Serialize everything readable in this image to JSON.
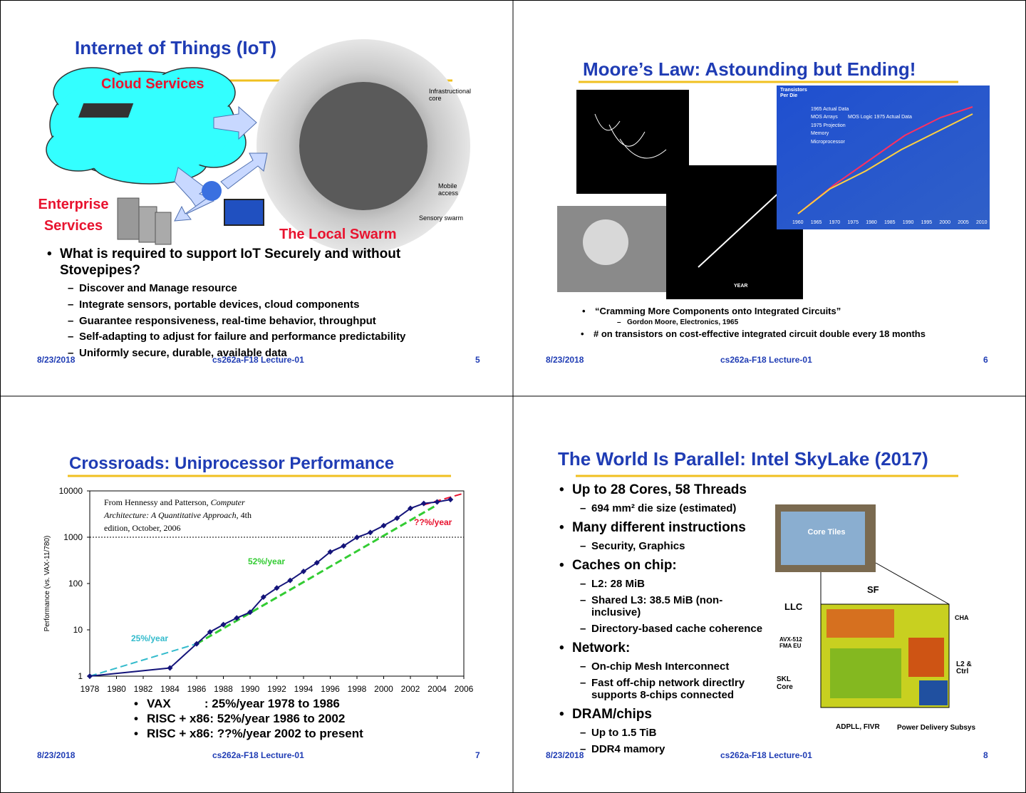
{
  "slides": [
    {
      "title": "Internet of Things (IoT)",
      "labels": {
        "cloud": "Cloud Services",
        "enterprise": "Enterprise Services",
        "swarm": "The Local Swarm",
        "core": "Infrastructional core",
        "mobile": "Mobile access",
        "sensory": "Sensory swarm"
      },
      "bullets": [
        {
          "text": "What is required to support IoT Securely and without Stovepipes?",
          "sub": [
            "Discover and Manage resource",
            "Integrate sensors, portable devices, cloud components",
            "Guarantee responsiveness, real-time behavior, throughput",
            "Self-adapting to adjust for failure and performance predictability",
            "Uniformly secure, durable, available data"
          ]
        }
      ],
      "footer": {
        "date": "8/23/2018",
        "course": "cs262a-F18 Lecture-01",
        "page": 5
      }
    },
    {
      "title": "Moore’s Law: Astounding but Ending!",
      "labels": {
        "transistors": "Transistors Per Die",
        "legend": [
          "1965 Actual Data",
          "MOS Arrays",
          "MOS Logic 1975 Actual Data",
          "1975 Projection",
          "Memory",
          "Microprocessor"
        ],
        "years": [
          "1960",
          "1965",
          "1970",
          "1975",
          "1980",
          "1985",
          "1990",
          "1995",
          "2000",
          "2005",
          "2010"
        ],
        "year_axis": "YEAR"
      },
      "bullets": [
        {
          "text": "“Cramming More Components onto Integrated Circuits”",
          "sub": [
            "Gordon Moore, Electronics, 1965"
          ]
        },
        {
          "text": "# on transistors on cost-effective integrated circuit double every 18 months"
        }
      ],
      "footer": {
        "date": "8/23/2018",
        "course": "cs262a-F18 Lecture-01",
        "page": 6
      }
    },
    {
      "title": "Crossroads: Uniprocessor Performance",
      "chart": {
        "type": "line",
        "ylabel": "Performance (vs. VAX-11/780)",
        "log_scale": true,
        "xlim": [
          1978,
          2006
        ],
        "xticks": [
          1978,
          1980,
          1982,
          1984,
          1986,
          1988,
          1990,
          1992,
          1994,
          1996,
          1998,
          2000,
          2002,
          2004,
          2006
        ],
        "ylim": [
          1,
          10000
        ],
        "yticks": [
          1,
          10,
          100,
          1000,
          10000
        ],
        "reference_line": 1000,
        "series": [
          {
            "color": "#14147a",
            "x": [
              1978,
              1984,
              1986,
              1987,
              1988,
              1989,
              1990,
              1991,
              1992,
              1993,
              1994,
              1995,
              1996,
              1997,
              1998,
              1999,
              2000,
              2001,
              2002,
              2003,
              2004,
              2005
            ],
            "values": [
              1,
              1.5,
              5,
              9,
              13,
              18,
              24,
              51,
              80,
              117,
              183,
              280,
              481,
              649,
              993,
              1267,
              1779,
              2584,
              4195,
              5364,
              5764,
              6505
            ]
          }
        ],
        "trends": [
          {
            "label": "25%/year",
            "color": "#33bbcc",
            "x": [
              1978,
              1986
            ],
            "values": [
              1,
              5
            ]
          },
          {
            "label": "52%/year",
            "color": "#33cc33",
            "x": [
              1986,
              2004
            ],
            "values": [
              5,
              5000
            ]
          },
          {
            "label": "??%/year",
            "color": "#e8132f",
            "x": [
              2003,
              2006
            ],
            "values": [
              5000,
              8900
            ]
          }
        ],
        "source": [
          "From Hennessy and Patterson, ",
          "Computer Architecture: A Quantitative Approach",
          ", 4th edition, October, 2006"
        ]
      },
      "bullets": [
        {
          "text": "VAX          : 25%/year 1978 to 1986"
        },
        {
          "text": "RISC + x86: 52%/year 1986 to 2002"
        },
        {
          "text": "RISC + x86: ??%/year 2002 to present"
        }
      ],
      "footer": {
        "date": "8/23/2018",
        "course": "cs262a-F18 Lecture-01",
        "page": 7
      }
    },
    {
      "title": "The World Is Parallel: Intel SkyLake (2017)",
      "labels": {
        "tiles": "Core Tiles",
        "llc": "LLC",
        "sf": "SF",
        "cha": "CHA",
        "avx": "AVX-512 FMA EU",
        "l2": "L2 & Ctrl",
        "skl": "SKL Core",
        "adpll": "ADPLL, FIVR",
        "power": "Power Delivery Subsys"
      },
      "bullets": [
        {
          "text": "Up to 28 Cores, 58 Threads",
          "sub": [
            "694 mm² die size (estimated)"
          ]
        },
        {
          "text": "Many different instructions",
          "sub": [
            "Security, Graphics"
          ]
        },
        {
          "text": "Caches on chip:",
          "sub": [
            "L2: 28 MiB",
            "Shared L3: 38.5 MiB (non-inclusive)",
            "Directory-based cache coherence"
          ]
        },
        {
          "text": "Network:",
          "sub": [
            "On-chip Mesh Interconnect",
            "Fast off-chip network directlry supports 8-chips connected"
          ]
        },
        {
          "text": "DRAM/chips",
          "sub": [
            "Up to 1.5 TiB",
            "DDR4 mamory"
          ]
        }
      ],
      "footer": {
        "date": "8/23/2018",
        "course": "cs262a-F18 Lecture-01",
        "page": 8
      }
    }
  ]
}
